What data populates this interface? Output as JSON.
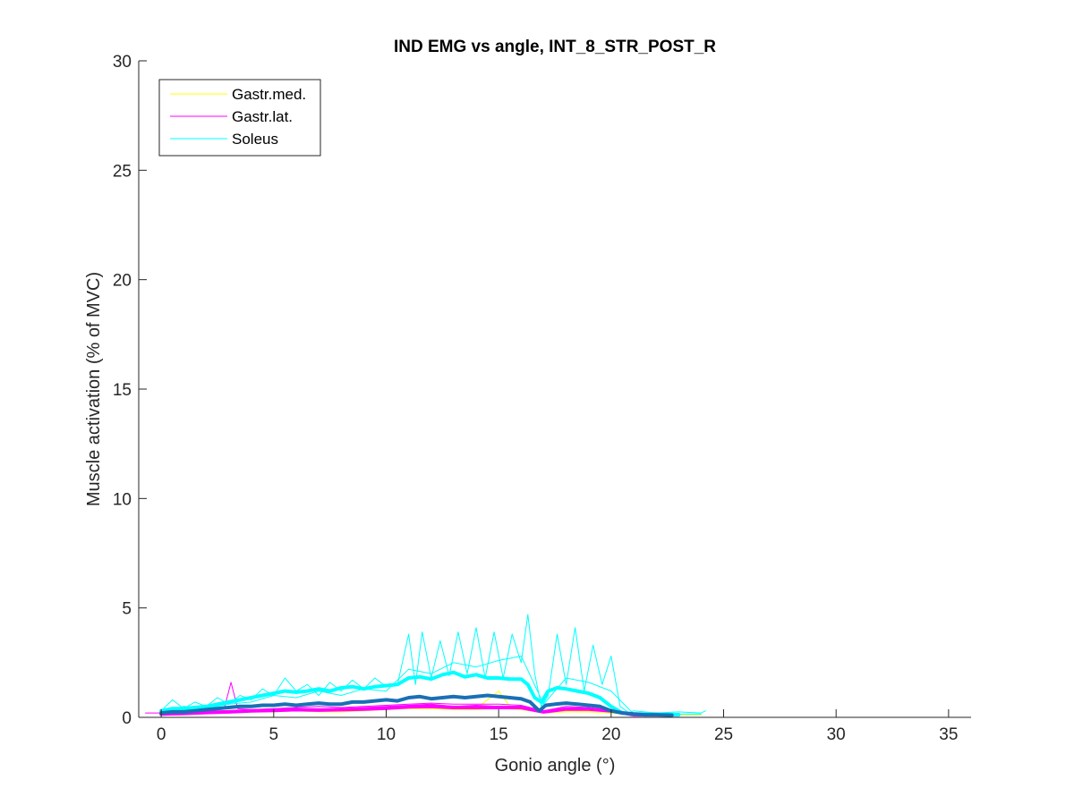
{
  "chart_data": {
    "type": "line",
    "title": "IND EMG vs angle, INT_8_STR_POST_R",
    "xlabel": "Gonio angle (°)",
    "ylabel": "Muscle activation (% of MVC)",
    "xlim": [
      -1,
      36
    ],
    "ylim": [
      0,
      30
    ],
    "xticks": [
      0,
      5,
      10,
      15,
      20,
      25,
      30,
      35
    ],
    "yticks": [
      0,
      5,
      10,
      15,
      20,
      25,
      30
    ],
    "grid": false,
    "legend": {
      "placement": "top-left",
      "entries": [
        {
          "label": "Gastr.med.",
          "color": "#ffff00"
        },
        {
          "label": "Gastr.lat.",
          "color": "#ff00ff"
        },
        {
          "label": "Soleus",
          "color": "#00ffff"
        }
      ]
    },
    "series": [
      {
        "color": "#ffff00",
        "width": 1,
        "x": [
          0,
          1,
          2,
          3,
          4,
          5,
          6,
          7,
          8,
          9,
          10,
          11,
          12,
          13,
          14,
          15,
          15.5,
          16,
          17,
          18,
          19,
          20,
          20.5,
          21,
          22,
          23,
          24
        ],
        "y": [
          0.2,
          0.2,
          0.2,
          0.25,
          0.3,
          0.3,
          0.35,
          0.3,
          0.3,
          0.35,
          0.4,
          0.5,
          0.5,
          0.45,
          0.4,
          1.2,
          0.5,
          0.4,
          0.2,
          0.3,
          0.3,
          0.25,
          0.15,
          0.15,
          0.12,
          0.12,
          0.12
        ]
      },
      {
        "color": "#ffff00",
        "width": 1,
        "x": [
          0,
          1,
          2,
          3,
          4,
          5,
          6,
          7,
          8,
          9,
          10,
          11,
          12,
          13,
          14,
          15,
          16,
          17,
          18,
          19,
          20,
          21,
          22,
          23
        ],
        "y": [
          0.15,
          0.15,
          0.2,
          0.2,
          0.25,
          0.25,
          0.3,
          0.25,
          0.25,
          0.3,
          0.35,
          0.4,
          0.4,
          0.35,
          0.35,
          0.4,
          0.35,
          0.2,
          0.25,
          0.25,
          0.2,
          0.12,
          0.12,
          0.12
        ]
      },
      {
        "color": "#ff00ff",
        "width": 1,
        "x": [
          -0.7,
          0,
          1,
          2,
          2.8,
          3.1,
          3.4,
          4,
          5,
          6,
          7,
          8,
          9,
          10,
          11,
          12,
          13,
          14,
          15,
          16,
          17,
          18,
          19,
          20,
          21,
          22,
          23
        ],
        "y": [
          0.2,
          0.2,
          0.25,
          0.3,
          0.4,
          1.6,
          0.4,
          0.35,
          0.4,
          0.45,
          0.5,
          0.45,
          0.5,
          0.55,
          0.6,
          0.65,
          0.6,
          0.6,
          0.6,
          0.55,
          0.3,
          0.5,
          0.45,
          0.3,
          0.15,
          0.15,
          0.12
        ]
      },
      {
        "color": "#ff00ff",
        "width": 1,
        "x": [
          0,
          1,
          2,
          3,
          4,
          5,
          6,
          7,
          8,
          9,
          10,
          11,
          12,
          13,
          14,
          15,
          16,
          17,
          18,
          19,
          20,
          21,
          22,
          23
        ],
        "y": [
          0.15,
          0.2,
          0.2,
          0.25,
          0.3,
          0.35,
          0.4,
          0.35,
          0.4,
          0.45,
          0.5,
          0.55,
          0.6,
          0.5,
          0.55,
          0.5,
          0.5,
          0.25,
          0.4,
          0.4,
          0.3,
          0.12,
          0.12,
          0.12
        ]
      },
      {
        "color": "#ff00ff",
        "width": 4,
        "x": [
          0,
          1,
          2,
          3,
          4,
          5,
          6,
          7,
          8,
          9,
          10,
          11,
          12,
          13,
          14,
          15,
          16,
          17,
          18,
          19,
          20,
          21,
          22,
          23
        ],
        "y": [
          0.15,
          0.18,
          0.22,
          0.25,
          0.3,
          0.32,
          0.35,
          0.33,
          0.35,
          0.38,
          0.42,
          0.48,
          0.5,
          0.45,
          0.45,
          0.45,
          0.45,
          0.25,
          0.38,
          0.38,
          0.3,
          0.12,
          0.12,
          0.12
        ]
      },
      {
        "color": "#00ffff",
        "width": 1,
        "x": [
          0,
          0.5,
          1,
          1.5,
          2,
          2.5,
          3,
          3.5,
          4,
          4.5,
          5,
          5.5,
          6,
          6.5,
          7,
          7.5,
          8,
          8.5,
          9,
          9.5,
          10,
          10.5,
          11,
          11.3,
          11.6,
          12,
          12.4,
          12.8,
          13.2,
          13.6,
          14,
          14.4,
          14.8,
          15.2,
          15.6,
          16,
          16.3,
          16.6,
          16.9,
          17.2,
          17.6,
          18,
          18.4,
          18.8,
          19.2,
          19.6,
          20,
          20.4,
          20.8,
          21,
          22,
          23,
          24,
          24.2
        ],
        "y": [
          0.3,
          0.8,
          0.4,
          0.7,
          0.5,
          0.9,
          0.6,
          1.0,
          0.8,
          1.3,
          1.0,
          1.8,
          1.2,
          1.5,
          1.0,
          1.6,
          1.2,
          1.7,
          1.3,
          1.8,
          1.4,
          1.5,
          3.8,
          1.5,
          3.9,
          1.8,
          3.5,
          1.9,
          3.9,
          2.0,
          4.1,
          1.8,
          3.9,
          1.8,
          3.8,
          2.5,
          4.7,
          2.0,
          0.5,
          1.0,
          3.8,
          1.5,
          4.1,
          1.2,
          3.3,
          1.5,
          2.8,
          0.5,
          0.2,
          0.3,
          0.2,
          0.25,
          0.2,
          0.3
        ]
      },
      {
        "color": "#00ffff",
        "width": 1,
        "x": [
          0,
          1,
          2,
          3,
          4,
          5,
          6,
          7,
          8,
          9,
          10,
          11,
          12,
          13,
          14,
          15,
          16,
          17,
          18,
          19,
          20,
          21,
          22,
          23,
          24
        ],
        "y": [
          0.2,
          0.5,
          0.4,
          0.6,
          0.7,
          1.0,
          0.9,
          1.2,
          1.0,
          1.3,
          1.2,
          2.2,
          2.0,
          2.5,
          2.3,
          2.6,
          2.8,
          0.6,
          1.8,
          1.6,
          1.2,
          0.15,
          0.15,
          0.15,
          0.15
        ]
      },
      {
        "color": "#00ffff",
        "width": 4,
        "x": [
          0,
          0.5,
          1,
          1.5,
          2,
          2.5,
          3,
          3.5,
          4,
          4.5,
          5,
          5.5,
          6,
          6.5,
          7,
          7.5,
          8,
          8.5,
          9,
          9.5,
          10,
          10.5,
          11,
          11.5,
          12,
          12.5,
          13,
          13.5,
          14,
          14.5,
          15,
          15.5,
          16,
          16.3,
          16.6,
          16.9,
          17.2,
          17.6,
          18,
          18.5,
          19,
          19.5,
          20,
          20.5,
          21,
          22,
          23
        ],
        "y": [
          0.3,
          0.4,
          0.4,
          0.45,
          0.5,
          0.6,
          0.7,
          0.8,
          0.9,
          1.0,
          1.1,
          1.2,
          1.15,
          1.2,
          1.3,
          1.2,
          1.35,
          1.4,
          1.3,
          1.4,
          1.45,
          1.5,
          1.8,
          1.85,
          1.75,
          1.95,
          2.05,
          1.85,
          1.95,
          1.8,
          1.8,
          1.75,
          1.75,
          1.5,
          0.9,
          0.7,
          1.2,
          1.35,
          1.3,
          1.2,
          1.1,
          0.9,
          0.5,
          0.2,
          0.15,
          0.15,
          0.12
        ]
      },
      {
        "color": "#1a6fb5",
        "width": 4,
        "x": [
          0,
          0.5,
          1,
          1.5,
          2,
          2.5,
          3,
          3.5,
          4,
          4.5,
          5,
          5.5,
          6,
          6.5,
          7,
          7.5,
          8,
          8.5,
          9,
          9.5,
          10,
          10.5,
          11,
          11.5,
          12,
          12.5,
          13,
          13.5,
          14,
          14.5,
          15,
          15.5,
          16,
          16.4,
          16.8,
          17.1,
          17.5,
          18,
          18.5,
          19,
          19.5,
          20,
          20.5,
          21,
          21.5,
          22,
          22.7
        ],
        "y": [
          0.2,
          0.25,
          0.25,
          0.3,
          0.35,
          0.4,
          0.45,
          0.5,
          0.5,
          0.55,
          0.55,
          0.6,
          0.55,
          0.6,
          0.65,
          0.6,
          0.6,
          0.7,
          0.7,
          0.75,
          0.8,
          0.75,
          0.9,
          0.95,
          0.85,
          0.9,
          0.95,
          0.9,
          0.95,
          1.0,
          0.95,
          0.9,
          0.85,
          0.7,
          0.3,
          0.55,
          0.6,
          0.65,
          0.6,
          0.55,
          0.5,
          0.3,
          0.2,
          0.15,
          0.12,
          0.12,
          0.1
        ]
      }
    ]
  }
}
